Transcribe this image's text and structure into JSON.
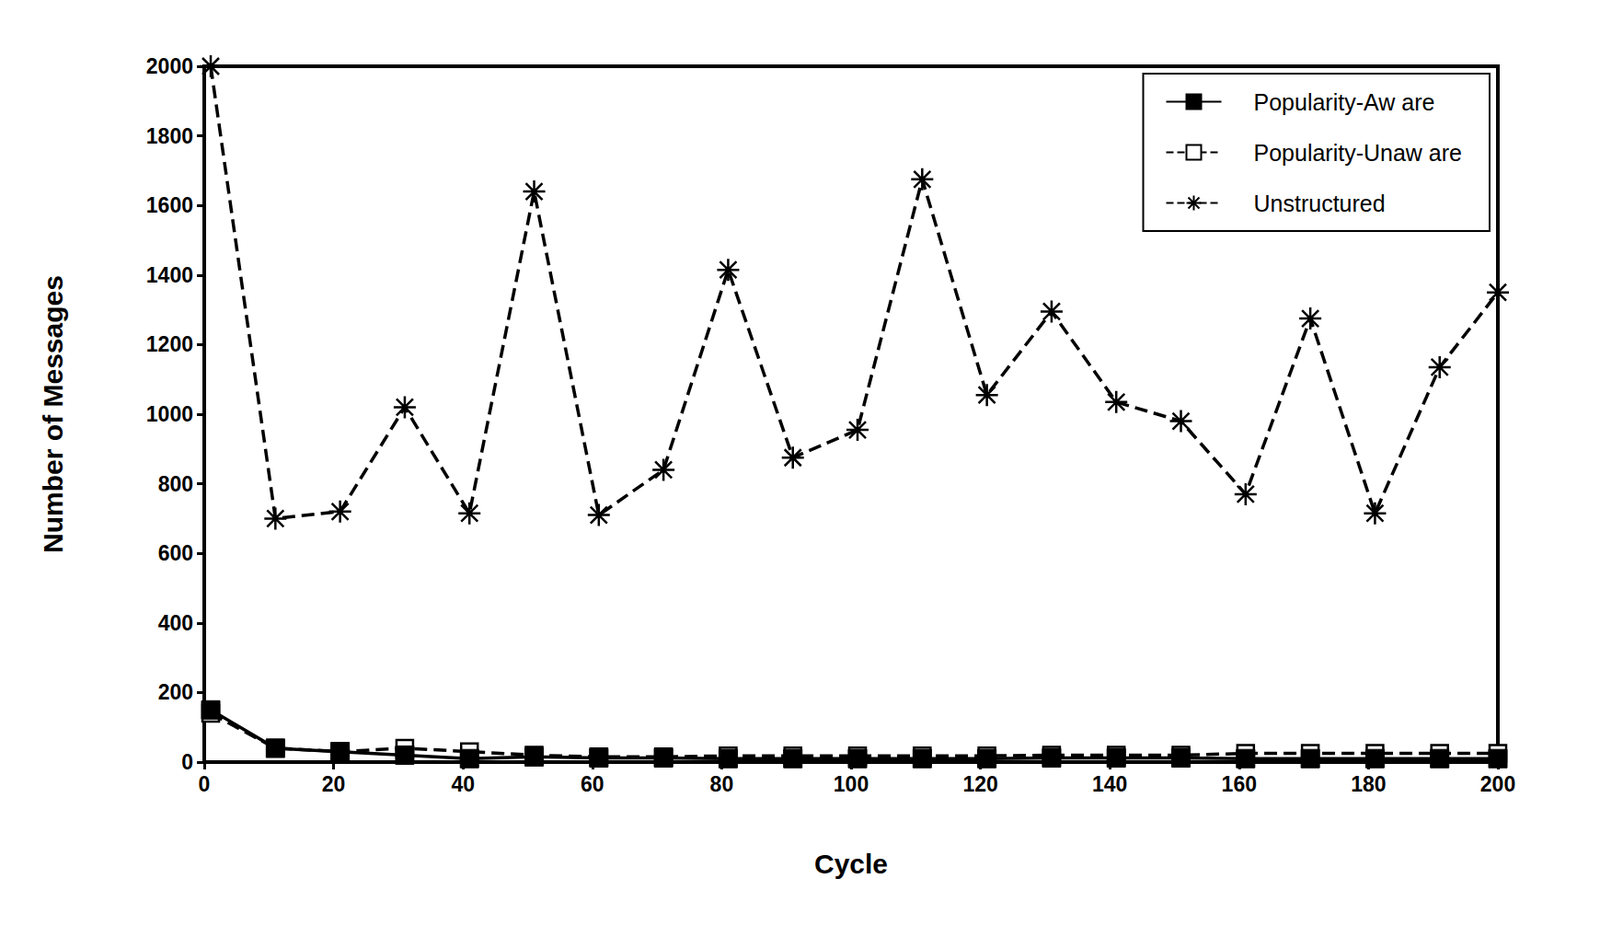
{
  "chart_data": {
    "type": "line",
    "x_label": "Cycle",
    "y_label": "Number of Messages",
    "x": [
      1,
      11,
      21,
      31,
      41,
      51,
      61,
      71,
      81,
      91,
      101,
      111,
      121,
      131,
      141,
      151,
      161,
      171,
      181,
      191,
      200
    ],
    "series": [
      {
        "name": "Popularity-Aw are",
        "color": "#000000",
        "marker": "square",
        "line_style": "solid",
        "values": [
          150,
          40,
          30,
          20,
          10,
          15,
          12,
          12,
          10,
          10,
          10,
          10,
          10,
          12,
          12,
          12,
          10,
          10,
          10,
          10,
          10
        ]
      },
      {
        "name": "Popularity-Unaw are",
        "color": "#000000",
        "marker": "open_square",
        "line_style": "dashed",
        "values": [
          140,
          40,
          30,
          40,
          30,
          20,
          15,
          15,
          18,
          18,
          18,
          18,
          18,
          20,
          20,
          20,
          25,
          25,
          25,
          25,
          25
        ]
      },
      {
        "name": "Unstructured",
        "color": "#000000",
        "marker": "asterisk",
        "line_style": "dashed",
        "values": [
          2000,
          700,
          720,
          1020,
          715,
          1640,
          710,
          840,
          1415,
          875,
          955,
          1675,
          1055,
          1295,
          1035,
          980,
          770,
          1275,
          715,
          1135,
          1350
        ]
      }
    ],
    "xlim": [
      0,
      200
    ],
    "xticks": [
      0,
      20,
      40,
      60,
      80,
      100,
      120,
      140,
      160,
      180,
      200
    ],
    "ylim": [
      0,
      2000
    ],
    "yticks": [
      0,
      200,
      400,
      600,
      800,
      1000,
      1200,
      1400,
      1600,
      1800,
      2000
    ],
    "grid": false,
    "legend": "upper right"
  }
}
